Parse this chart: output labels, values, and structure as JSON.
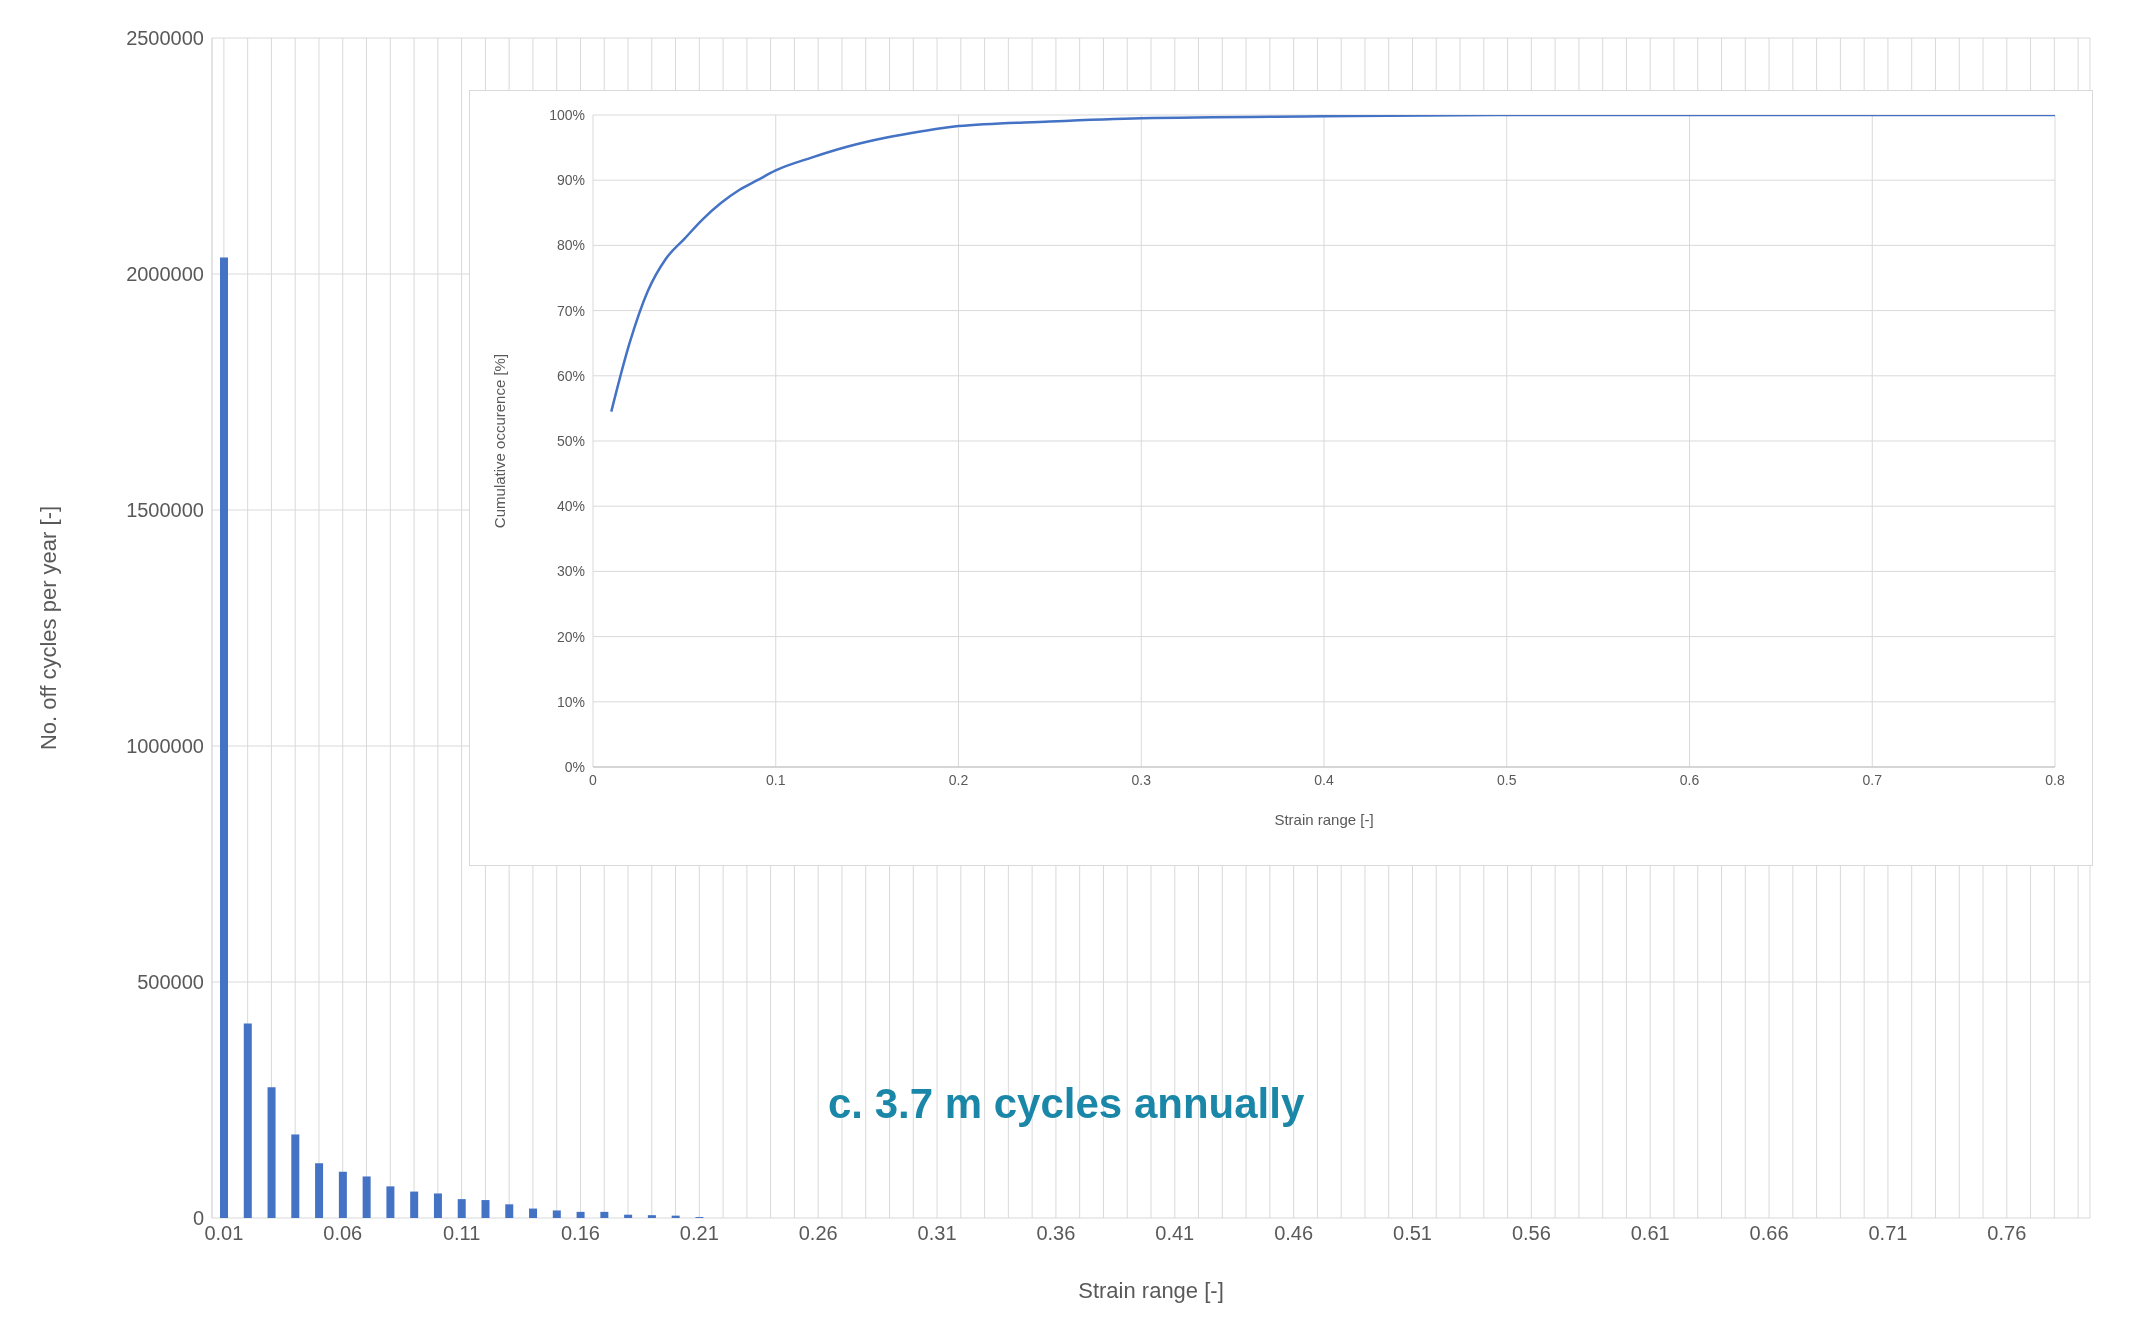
{
  "chart_data": [
    {
      "type": "bar",
      "xlabel": "Strain range [-]",
      "ylabel": "No. off cycles per year [-]",
      "categories": [
        "0.01",
        null,
        null,
        null,
        null,
        "0.06",
        null,
        null,
        null,
        null,
        "0.11",
        null,
        null,
        null,
        null,
        "0.16",
        null,
        null,
        null,
        null,
        "0.21",
        null,
        null,
        null,
        null,
        "0.26",
        null,
        null,
        null,
        null,
        "0.31",
        null,
        null,
        null,
        null,
        "0.36",
        null,
        null,
        null,
        null,
        "0.41",
        null,
        null,
        null,
        null,
        "0.46",
        null,
        null,
        null,
        null,
        "0.51",
        null,
        null,
        null,
        null,
        "0.56",
        null,
        null,
        null,
        null,
        "0.61",
        null,
        null,
        null,
        null,
        "0.66",
        null,
        null,
        null,
        null,
        "0.71",
        null,
        null,
        null,
        null,
        "0.76",
        null,
        null,
        null
      ],
      "values": [
        2035000,
        412000,
        277000,
        177000,
        116000,
        98000,
        88000,
        67000,
        56000,
        52000,
        40000,
        38000,
        29000,
        20000,
        16000,
        13000,
        13000,
        7000,
        6000,
        5000,
        2000,
        null,
        null,
        null,
        0,
        0,
        0,
        0,
        0,
        0,
        0,
        0,
        0,
        0,
        0,
        0,
        0,
        0,
        0,
        0,
        0,
        0,
        0,
        0,
        0,
        0,
        0,
        0,
        0,
        0,
        0,
        0,
        0,
        0,
        0,
        0,
        0,
        0,
        0,
        0,
        0,
        0,
        0,
        0,
        0,
        0,
        0,
        0,
        0,
        0,
        0,
        0,
        0,
        0,
        0,
        0,
        0,
        0,
        0
      ],
      "color": "#4472c4",
      "ylim": [
        0,
        2500000
      ],
      "yticks": [
        0,
        500000,
        1000000,
        1500000,
        2000000,
        2500000
      ],
      "grid": true,
      "annotations": [
        "c. 3.7 m cycles annually"
      ]
    },
    {
      "type": "line",
      "xlabel": "Strain range [-]",
      "ylabel": "Cumulative occurence [%]",
      "x": [
        0.01,
        0.02,
        0.03,
        0.04,
        0.05,
        0.06,
        0.07,
        0.08,
        0.09,
        0.1,
        0.12,
        0.14,
        0.16,
        0.18,
        0.2,
        0.25,
        0.3,
        0.4,
        0.5,
        0.8
      ],
      "series": [
        {
          "color": "#4472c4",
          "values": [
            54.5,
            65,
            73,
            78,
            81,
            84,
            86.5,
            88.5,
            90,
            91.5,
            93.5,
            95.2,
            96.5,
            97.5,
            98.3,
            99,
            99.5,
            99.8,
            100,
            100
          ]
        }
      ],
      "xlim": [
        0,
        0.8
      ],
      "xticks": [
        0,
        0.1,
        0.2,
        0.3,
        0.4,
        0.5,
        0.6,
        0.7,
        0.8
      ],
      "ylim": [
        0,
        100
      ],
      "yticks": [
        {
          "value": 0,
          "label": "0%"
        },
        {
          "value": 10,
          "label": "10%"
        },
        {
          "value": 20,
          "label": "20%"
        },
        {
          "value": 30,
          "label": "30%"
        },
        {
          "value": 40,
          "label": "40%"
        },
        {
          "value": 50,
          "label": "50%"
        },
        {
          "value": 60,
          "label": "60%"
        },
        {
          "value": 70,
          "label": "70%"
        },
        {
          "value": 80,
          "label": "80%"
        },
        {
          "value": 90,
          "label": "90%"
        },
        {
          "value": 100,
          "label": "100%"
        }
      ],
      "grid": true
    }
  ]
}
